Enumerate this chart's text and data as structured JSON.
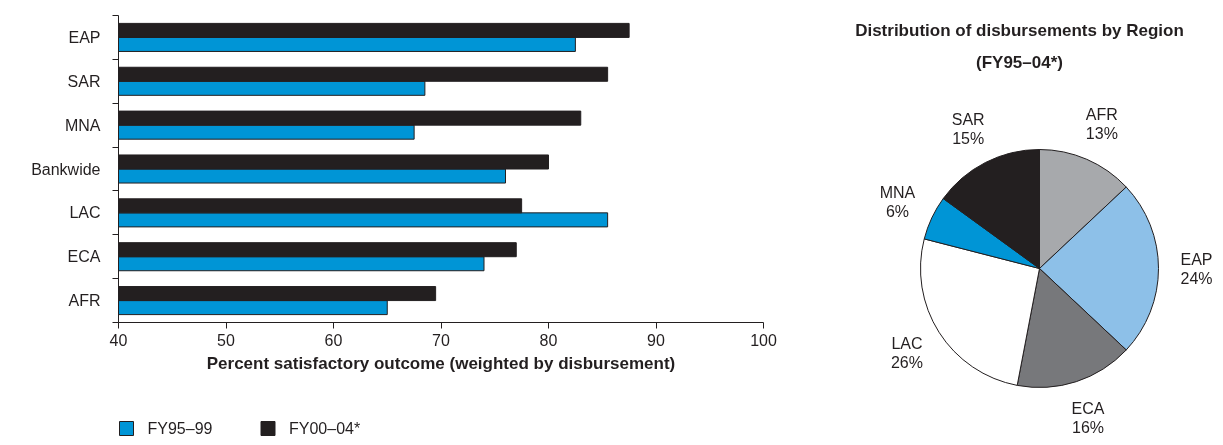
{
  "chart_data": [
    {
      "type": "bar",
      "orientation": "horizontal",
      "categories": [
        "EAP",
        "SAR",
        "MNA",
        "Bankwide",
        "LAC",
        "ECA",
        "AFR"
      ],
      "series": [
        {
          "name": "FY95–99",
          "color": "#0095d6",
          "values": [
            82.5,
            68.5,
            67.5,
            76,
            85.5,
            74,
            65
          ]
        },
        {
          "name": "FY00–04*",
          "color": "#231f20",
          "values": [
            87.5,
            85.5,
            83,
            80,
            77.5,
            77,
            69.5
          ]
        }
      ],
      "xlabel": "Percent satisfactory outcome (weighted by disbursement)",
      "xlim": [
        40,
        100
      ],
      "xticks": [
        40,
        50,
        60,
        70,
        80,
        90,
        100
      ],
      "legend": "bottom left"
    },
    {
      "type": "pie",
      "title": "Distribution of disbursements by Region (FY95–04*)",
      "categories": [
        "AFR",
        "EAP",
        "ECA",
        "LAC",
        "MNA",
        "SAR"
      ],
      "values": [
        13,
        24,
        16,
        26,
        6,
        15
      ],
      "colors": [
        "#a7a9ac",
        "#8dc0e8",
        "#77787b",
        "#ffffff",
        "#0095d6",
        "#231f20"
      ],
      "value_labels": [
        "13%",
        "24%",
        "16%",
        "26%",
        "6%",
        "15%"
      ]
    }
  ]
}
